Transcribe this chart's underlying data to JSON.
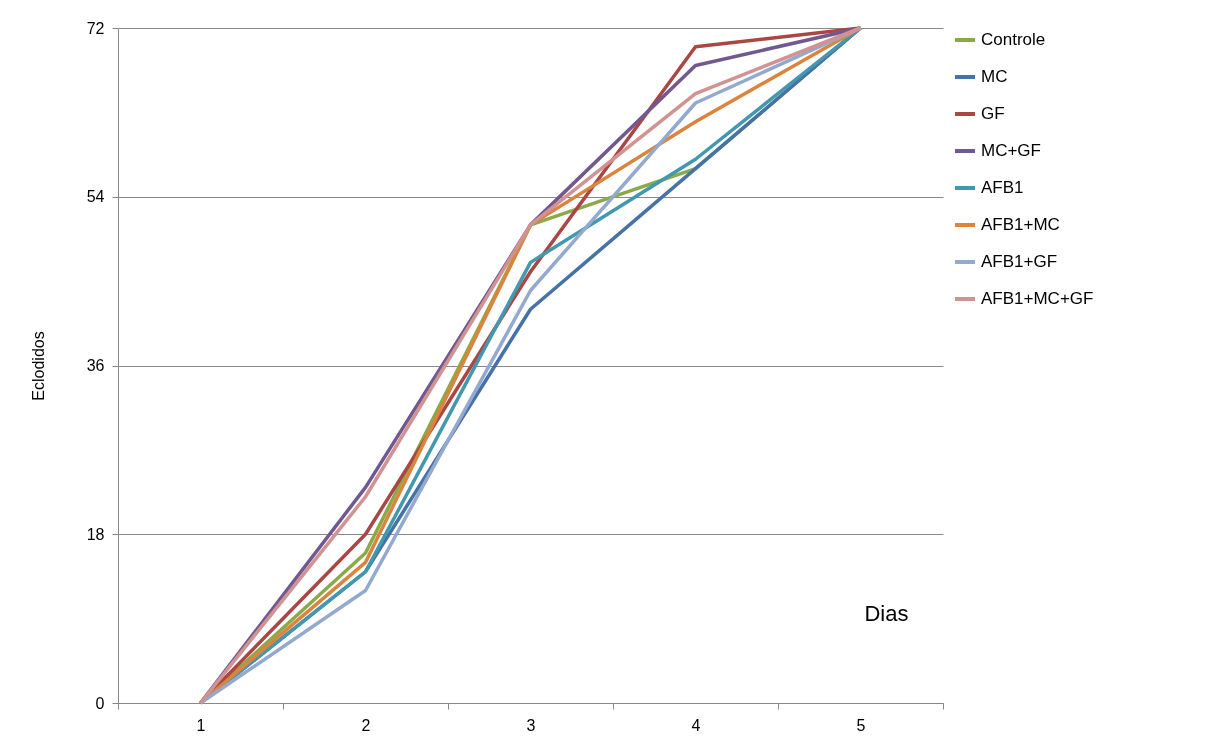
{
  "chart_data": {
    "type": "line",
    "xlabel": "Dias",
    "ylabel": "Eclodidos",
    "categories": [
      "1",
      "2",
      "3",
      "4",
      "5"
    ],
    "ylim": [
      0,
      72
    ],
    "yticks": [
      0,
      18,
      36,
      54,
      72
    ],
    "grid": "y",
    "legend": "right",
    "series": [
      {
        "name": "Controle",
        "color": "#8aaa4a",
        "values": [
          0,
          16,
          51,
          57,
          72
        ]
      },
      {
        "name": "MC",
        "color": "#4572a7",
        "values": [
          0,
          14,
          42,
          57,
          72
        ]
      },
      {
        "name": "GF",
        "color": "#aa4643",
        "values": [
          0,
          18,
          46,
          70,
          72
        ]
      },
      {
        "name": "MC+GF",
        "color": "#71588f",
        "values": [
          0,
          23,
          51,
          68,
          72
        ]
      },
      {
        "name": "AFB1",
        "color": "#4198af",
        "values": [
          0,
          14,
          47,
          58,
          72
        ]
      },
      {
        "name": "AFB1+MC",
        "color": "#db843d",
        "values": [
          0,
          15,
          51,
          62,
          72
        ]
      },
      {
        "name": "AFB1+GF",
        "color": "#93a9cf",
        "values": [
          0,
          12,
          44,
          64,
          72
        ]
      },
      {
        "name": "AFB1+MC+GF",
        "color": "#d19392",
        "values": [
          0,
          22,
          51,
          65,
          72
        ]
      }
    ]
  }
}
